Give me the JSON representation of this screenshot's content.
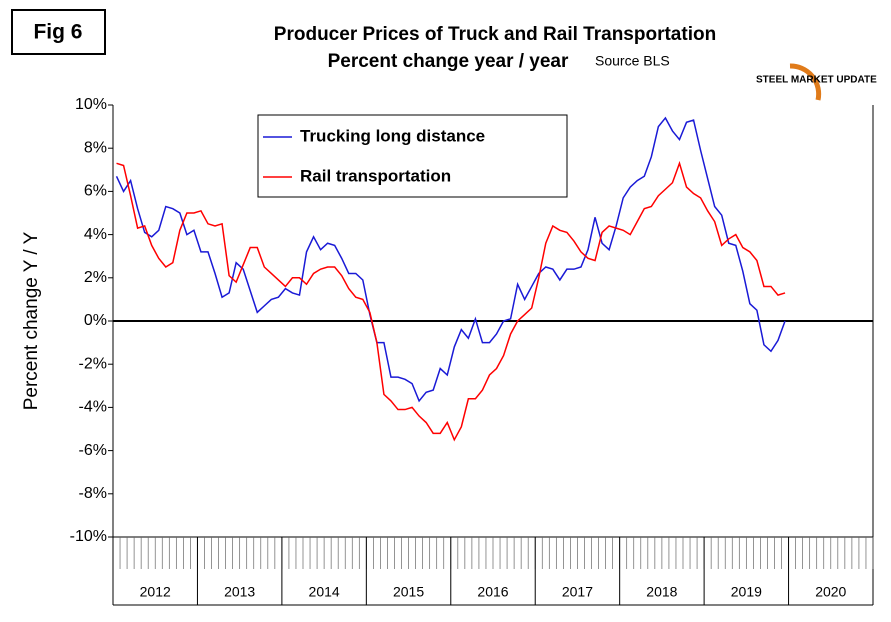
{
  "chart_data": {
    "type": "line",
    "figure_label": "Fig 6",
    "title": "Producer Prices of Truck and Rail Transportation",
    "subtitle": "Percent change year / year",
    "source": "Source BLS",
    "logo": "STEEL MARKET UPDATE",
    "y_label": "Percent change Y / Y",
    "ylim": [
      -10,
      10
    ],
    "yticks": [
      {
        "value": -10,
        "label": "-10%"
      },
      {
        "value": -8,
        "label": "-8%"
      },
      {
        "value": -6,
        "label": "-6%"
      },
      {
        "value": -4,
        "label": "-4%"
      },
      {
        "value": -2,
        "label": "-2%"
      },
      {
        "value": 0,
        "label": "0%"
      },
      {
        "value": 2,
        "label": "2%"
      },
      {
        "value": 4,
        "label": "4%"
      },
      {
        "value": 6,
        "label": "6%"
      },
      {
        "value": 8,
        "label": "8%"
      },
      {
        "value": 10,
        "label": "10%"
      }
    ],
    "x_groups": [
      "2012",
      "2013",
      "2014",
      "2015",
      "2016",
      "2017",
      "2018",
      "2019",
      "2020"
    ],
    "categories": [
      null,
      null,
      null,
      null,
      null,
      null,
      null,
      null,
      null,
      null,
      null,
      null,
      null,
      null,
      null,
      null,
      null,
      null,
      null,
      null,
      null,
      null,
      null,
      null,
      null,
      null,
      null,
      null,
      null,
      null,
      null,
      null,
      null,
      null,
      null,
      null,
      null,
      null,
      null,
      null,
      null,
      null,
      null,
      null,
      null,
      null,
      null,
      null,
      null,
      null,
      null,
      null,
      null,
      null,
      null,
      null,
      null,
      null,
      null,
      null,
      null,
      null,
      null,
      null,
      null,
      null,
      null,
      null,
      null,
      null,
      null,
      null,
      null,
      null,
      null,
      null,
      null,
      null,
      null,
      null,
      null,
      null,
      null,
      null,
      null,
      null,
      null,
      null,
      null,
      null,
      null,
      null,
      null,
      null,
      null,
      null,
      null,
      null,
      null,
      null,
      null,
      null,
      null,
      null,
      null,
      null,
      null,
      null
    ],
    "zero_line": true,
    "series": [
      {
        "name": "Trucking long distance",
        "color": "#1a1ad6",
        "values": [
          6.7,
          6.0,
          6.5,
          5.2,
          4.1,
          3.9,
          4.2,
          5.3,
          5.2,
          5.0,
          4.0,
          4.2,
          3.2,
          3.2,
          2.2,
          1.1,
          1.3,
          2.7,
          2.4,
          1.4,
          0.4,
          0.7,
          1.0,
          1.1,
          1.5,
          1.3,
          1.2,
          3.2,
          3.9,
          3.3,
          3.6,
          3.5,
          2.9,
          2.2,
          2.2,
          1.9,
          0.3,
          -1.0,
          -1.0,
          -2.6,
          -2.6,
          -2.7,
          -2.9,
          -3.7,
          -3.3,
          -3.2,
          -2.2,
          -2.5,
          -1.2,
          -0.4,
          -0.8,
          0.1,
          -1.0,
          -1.0,
          -0.6,
          0.0,
          0.1,
          1.7,
          1.0,
          1.6,
          2.2,
          2.5,
          2.4,
          1.9,
          2.4,
          2.4,
          2.5,
          3.3,
          4.8,
          3.6,
          3.3,
          4.4,
          5.7,
          6.2,
          6.5,
          6.7,
          7.6,
          9.0,
          9.4,
          8.8,
          8.4,
          9.2,
          9.3,
          7.9,
          6.6,
          5.3,
          4.9,
          3.6,
          3.5,
          2.3,
          0.8,
          0.5,
          -1.1,
          -1.4,
          -0.9,
          0.0,
          null,
          null,
          null,
          null,
          null,
          null,
          null,
          null,
          null,
          null,
          null,
          null
        ]
      },
      {
        "name": "Rail transportation",
        "color": "#ff0000",
        "values": [
          7.3,
          7.2,
          5.8,
          4.3,
          4.4,
          3.5,
          2.9,
          2.5,
          2.7,
          4.2,
          5.0,
          5.0,
          5.1,
          4.5,
          4.4,
          4.5,
          2.1,
          1.8,
          2.6,
          3.4,
          3.4,
          2.5,
          2.2,
          1.9,
          1.6,
          2.0,
          2.0,
          1.7,
          2.2,
          2.4,
          2.5,
          2.5,
          2.1,
          1.5,
          1.1,
          1.0,
          0.4,
          -1.0,
          -3.4,
          -3.7,
          -4.1,
          -4.1,
          -4.0,
          -4.4,
          -4.7,
          -5.2,
          -5.2,
          -4.7,
          -5.5,
          -4.9,
          -3.6,
          -3.6,
          -3.2,
          -2.5,
          -2.2,
          -1.6,
          -0.6,
          0.0,
          0.3,
          0.6,
          2.0,
          3.6,
          4.4,
          4.2,
          4.1,
          3.7,
          3.2,
          2.9,
          2.8,
          4.1,
          4.4,
          4.3,
          4.2,
          4.0,
          4.6,
          5.2,
          5.3,
          5.8,
          6.1,
          6.4,
          7.3,
          6.2,
          5.9,
          5.7,
          5.1,
          4.6,
          3.5,
          3.8,
          4.0,
          3.4,
          3.2,
          2.8,
          1.6,
          1.6,
          1.2,
          1.3,
          null,
          null,
          null,
          null,
          null,
          null,
          null,
          null,
          null,
          null,
          null,
          null
        ]
      }
    ]
  }
}
